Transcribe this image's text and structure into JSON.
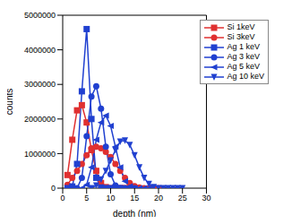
{
  "chart_data": {
    "type": "line",
    "xlabel": "depth (nm)",
    "ylabel": "counts",
    "xlim": [
      0,
      30
    ],
    "xticks": [
      0,
      5,
      10,
      15,
      20,
      25,
      30
    ],
    "ylim": [
      0,
      5000000
    ],
    "yticks": [
      0,
      1000000,
      2000000,
      3000000,
      4000000,
      5000000
    ],
    "legend": "upper right",
    "series": [
      {
        "name": "Si 1keV",
        "color": "#e03030",
        "marker": "square",
        "x": [
          1,
          2,
          3,
          4,
          5,
          6,
          7,
          8,
          9,
          10,
          11,
          12,
          13,
          14,
          15
        ],
        "values": [
          380000,
          1400000,
          2250000,
          2400000,
          1900000,
          1100000,
          500000,
          150000,
          30000,
          0,
          0,
          0,
          0,
          0,
          0
        ]
      },
      {
        "name": "Si 3keV",
        "color": "#e03030",
        "marker": "circle",
        "x": [
          1,
          2,
          3,
          4,
          5,
          6,
          7,
          8,
          9,
          10,
          11,
          12,
          13,
          14,
          15,
          16,
          17,
          18,
          19,
          20
        ],
        "values": [
          100000,
          300000,
          500000,
          700000,
          950000,
          1150000,
          1200000,
          1150000,
          1050000,
          900000,
          700000,
          500000,
          300000,
          150000,
          60000,
          20000,
          0,
          0,
          0,
          0
        ]
      },
      {
        "name": "Ag 1 keV",
        "color": "#2040d0",
        "marker": "square",
        "x": [
          1,
          2,
          3,
          4,
          5,
          6,
          7,
          8,
          9,
          10,
          11,
          12
        ],
        "values": [
          0,
          50000,
          700000,
          2800000,
          4600000,
          2000000,
          300000,
          20000,
          0,
          0,
          0,
          0
        ]
      },
      {
        "name": "Ag 3 keV",
        "color": "#2040d0",
        "marker": "circle",
        "x": [
          3,
          4,
          5,
          6,
          7,
          8,
          9,
          10,
          11,
          12,
          13,
          14,
          15
        ],
        "values": [
          0,
          300000,
          1500000,
          2650000,
          2950000,
          2300000,
          1200000,
          400000,
          80000,
          0,
          0,
          0,
          0
        ]
      },
      {
        "name": "Ag 5 keV",
        "color": "#2040d0",
        "marker": "triangle-left",
        "x": [
          4,
          5,
          6,
          7,
          8,
          9,
          10,
          11,
          12,
          13,
          14,
          15,
          16,
          17,
          18
        ],
        "values": [
          0,
          100000,
          600000,
          1400000,
          1900000,
          2100000,
          1800000,
          1200000,
          600000,
          200000,
          50000,
          0,
          0,
          0,
          0
        ]
      },
      {
        "name": "Ag 10 keV",
        "color": "#2040d0",
        "marker": "triangle-down",
        "x": [
          6,
          7,
          8,
          9,
          10,
          11,
          12,
          13,
          14,
          15,
          16,
          17,
          18,
          19,
          20,
          21,
          22,
          23,
          24,
          25
        ],
        "values": [
          0,
          80000,
          250000,
          500000,
          800000,
          1100000,
          1350000,
          1380000,
          1250000,
          950000,
          600000,
          300000,
          120000,
          30000,
          0,
          0,
          0,
          0,
          0,
          0
        ]
      }
    ]
  }
}
